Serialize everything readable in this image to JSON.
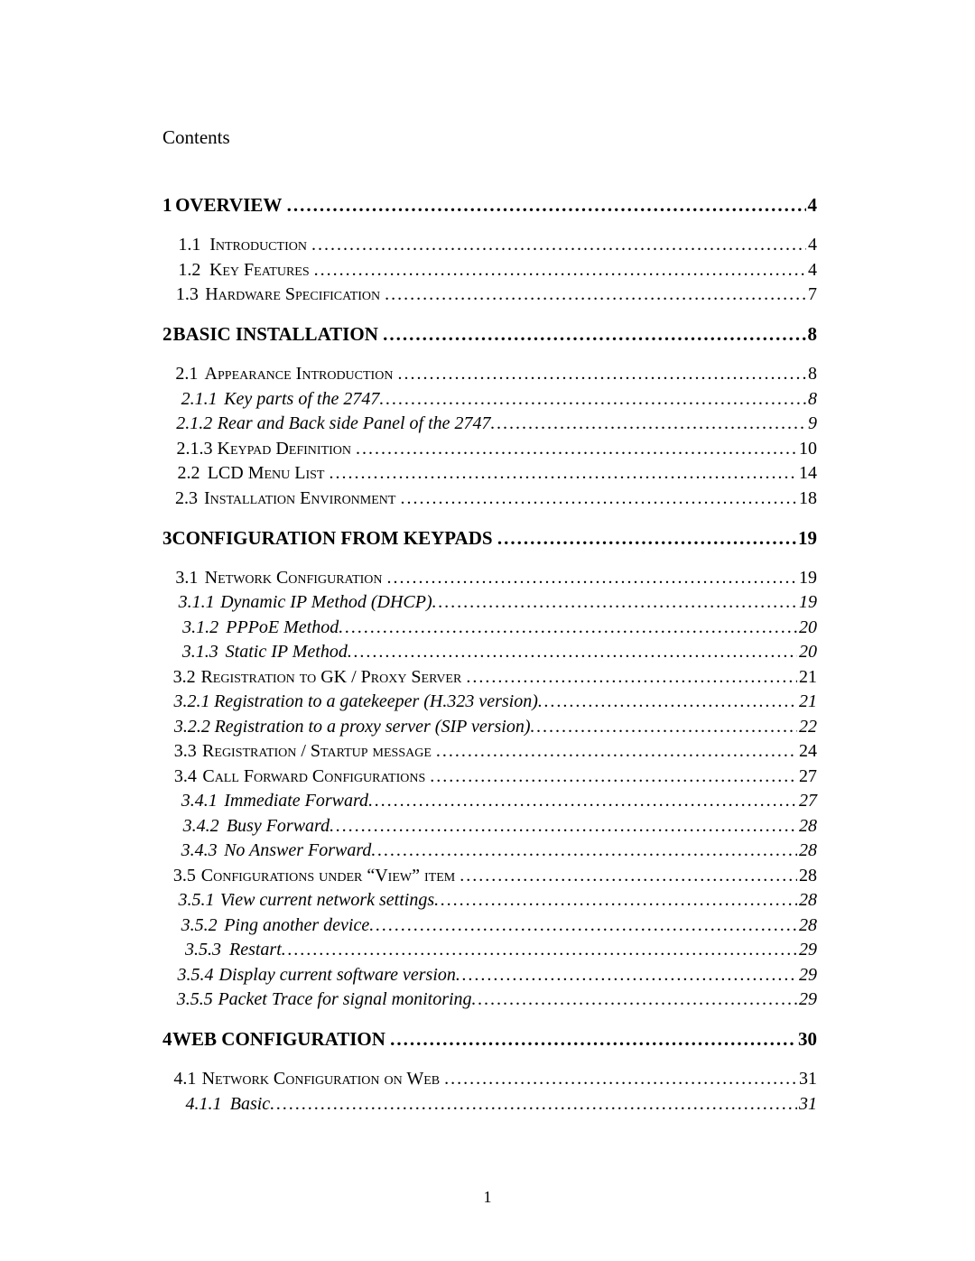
{
  "title": "Contents",
  "footer_page": "1",
  "rows": [
    {
      "lvl": "1",
      "num": "1",
      "text": "OVERVIEW",
      "pg": "4"
    },
    {
      "lvl": "2",
      "num": "1.1",
      "text": "Introduction",
      "pg": "4",
      "sc": true
    },
    {
      "lvl": "2",
      "num": "1.2",
      "text": "Key Features",
      "pg": "4",
      "sc": true
    },
    {
      "lvl": "2",
      "num": "1.3",
      "text": "Hardware Specification",
      "pg": "7",
      "sc": true
    },
    {
      "lvl": "1",
      "num": "2",
      "text": "BASIC INSTALLATION",
      "pg": "8"
    },
    {
      "lvl": "2",
      "num": "2.1",
      "text": "Appearance Introduction",
      "pg": "8",
      "sc": true
    },
    {
      "lvl": "3",
      "num": "2.1.1",
      "text": "Key parts of the 2747",
      "pg": "8"
    },
    {
      "lvl": "3",
      "num": "2.1.2",
      "text": "Rear and Back side Panel of the 2747",
      "pg": "9"
    },
    {
      "lvl": "odd",
      "num": "",
      "text": "2.1.3 Keypad Definition",
      "pg": "10",
      "sc": true
    },
    {
      "lvl": "2",
      "num": "2.2",
      "text": "LCD Menu List",
      "pg": "14",
      "sc": true
    },
    {
      "lvl": "2",
      "num": "2.3",
      "text": "Installation Environment",
      "pg": "18",
      "sc": true
    },
    {
      "lvl": "1",
      "num": "3",
      "text": "CONFIGURATION FROM KEYPADS",
      "pg": "19"
    },
    {
      "lvl": "2",
      "num": "3.1",
      "text": "Network Configuration",
      "pg": "19",
      "sc": true
    },
    {
      "lvl": "3",
      "num": "3.1.1",
      "text": "Dynamic IP Method (DHCP)",
      "pg": "19"
    },
    {
      "lvl": "3",
      "num": "3.1.2",
      "text": "PPPoE Method",
      "pg": "20"
    },
    {
      "lvl": "3",
      "num": "3.1.3",
      "text": "Static IP Method",
      "pg": "20"
    },
    {
      "lvl": "2",
      "num": "3.2",
      "text": "Registration to GK / Proxy Server",
      "pg": "21",
      "sc": true
    },
    {
      "lvl": "3",
      "num": "3.2.1",
      "text": "Registration to a gatekeeper (H.323 version)",
      "pg": "21"
    },
    {
      "lvl": "3",
      "num": "3.2.2",
      "text": "Registration to a proxy server (SIP version)",
      "pg": "22"
    },
    {
      "lvl": "2",
      "num": "3.3",
      "text": "Registration / Startup message",
      "pg": "24",
      "sc": true
    },
    {
      "lvl": "2",
      "num": "3.4",
      "text": "Call Forward Configurations",
      "pg": "27",
      "sc": true
    },
    {
      "lvl": "3",
      "num": "3.4.1",
      "text": "Immediate Forward",
      "pg": "27"
    },
    {
      "lvl": "3",
      "num": "3.4.2",
      "text": "Busy Forward",
      "pg": "28"
    },
    {
      "lvl": "3",
      "num": "3.4.3",
      "text": "No Answer Forward",
      "pg": "28"
    },
    {
      "lvl": "2",
      "num": "3.5",
      "text": "Configurations under “View” item",
      "pg": "28",
      "sc": true
    },
    {
      "lvl": "3",
      "num": "3.5.1",
      "text": "View current network settings",
      "pg": "28"
    },
    {
      "lvl": "3",
      "num": "3.5.2",
      "text": "Ping another device",
      "pg": "28"
    },
    {
      "lvl": "3",
      "num": "3.5.3",
      "text": "Restart",
      "pg": "29"
    },
    {
      "lvl": "3",
      "num": "3.5.4",
      "text": "Display current software version",
      "pg": "29"
    },
    {
      "lvl": "3",
      "num": "3.5.5",
      "text": "Packet Trace for signal monitoring",
      "pg": "29"
    },
    {
      "lvl": "1",
      "num": "4",
      "text": "WEB CONFIGURATION",
      "pg": "30"
    },
    {
      "lvl": "2",
      "num": "4.1",
      "text": "Network Configuration on Web",
      "pg": "31",
      "sc": true
    },
    {
      "lvl": "3",
      "num": "4.1.1",
      "text": "Basic",
      "pg": "31"
    }
  ]
}
